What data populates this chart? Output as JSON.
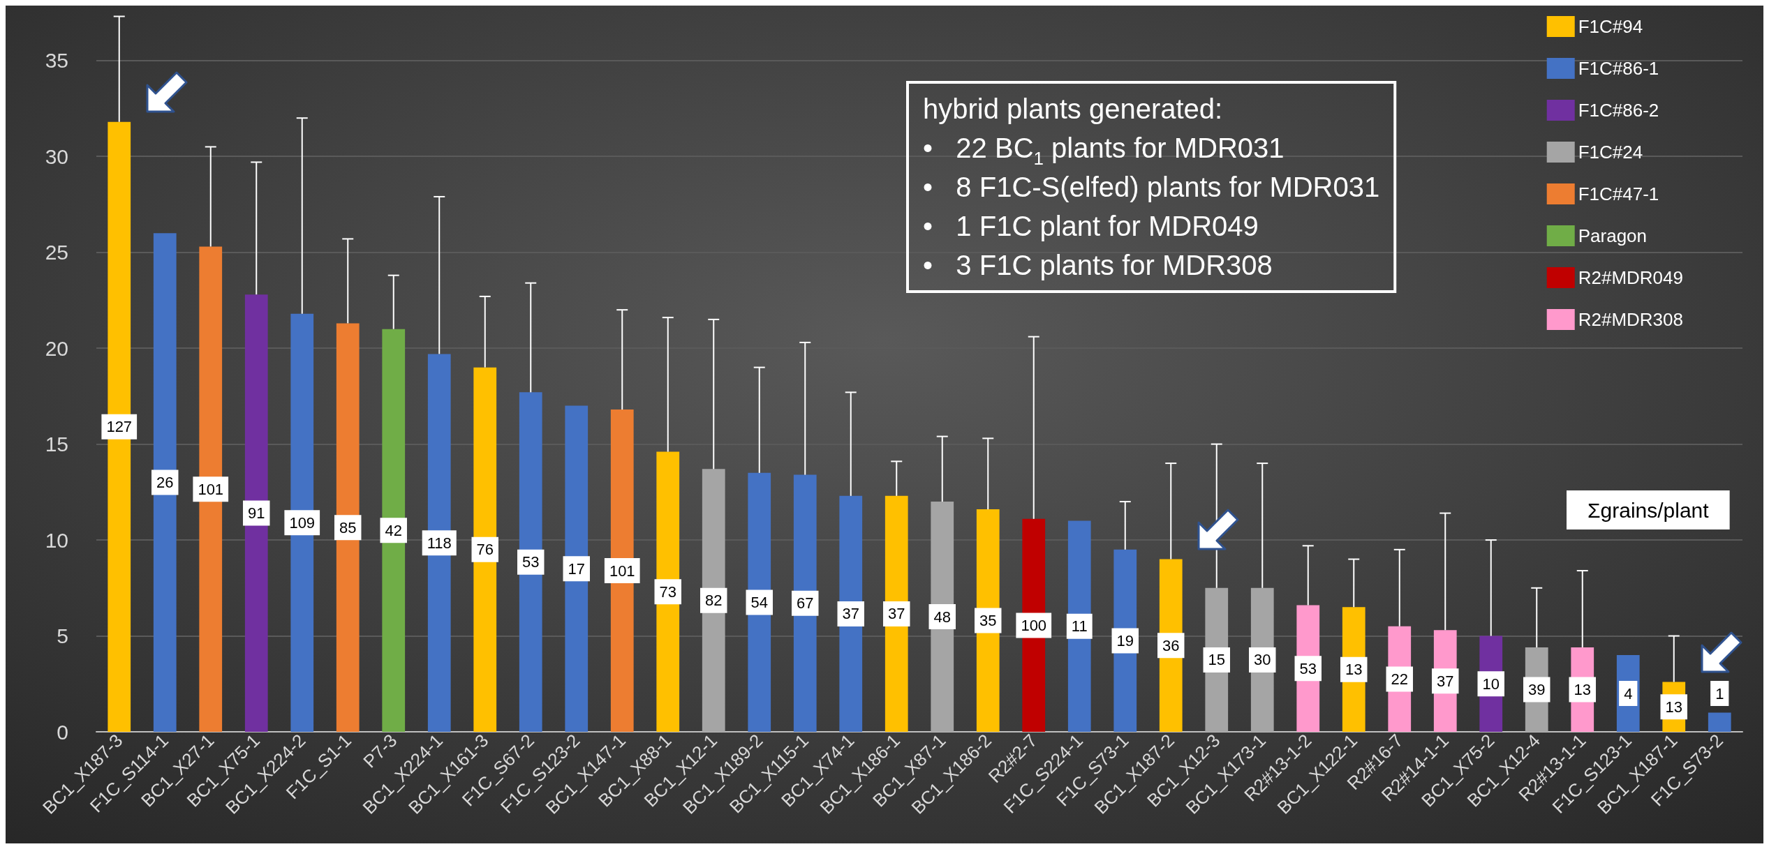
{
  "chart_data": {
    "type": "bar",
    "categories": [
      "BC1_X187-3",
      "F1C_S114-1",
      "BC1_X27-1",
      "BC1_X75-1",
      "BC1_X224-2",
      "F1C_S1-1",
      "P7-3",
      "BC1_X224-1",
      "BC1_X161-3",
      "F1C_S67-2",
      "F1C_S123-2",
      "BC1_X147-1",
      "BC1_X88-1",
      "BC1_X12-1",
      "BC1_X189-2",
      "BC1_X115-1",
      "BC1_X74-1",
      "BC1_X186-1",
      "BC1_X87-1",
      "BC1_X186-2",
      "R2#2-7",
      "F1C_S224-1",
      "F1C_S73-1",
      "BC1_X187-2",
      "BC1_X12-3",
      "BC1_X173-1",
      "R2#13-1-2",
      "BC1_X122-1",
      "R2#16-7",
      "R2#14-1-1",
      "BC1_X75-2",
      "BC1_X12-4",
      "R2#13-1-1",
      "F1C_S123-1",
      "BC1_X187-1",
      "F1C_S73-2"
    ],
    "series": [
      {
        "name": "F1C#94",
        "color": "#ffc000",
        "values": [
          31.8,
          null,
          null,
          null,
          null,
          null,
          null,
          null,
          19.0,
          null,
          null,
          null,
          14.6,
          null,
          null,
          null,
          null,
          12.3,
          null,
          11.6,
          null,
          null,
          null,
          9.0,
          null,
          null,
          null,
          6.5,
          null,
          null,
          null,
          null,
          null,
          null,
          2.6,
          null
        ],
        "errors": [
          [
            31.8,
            37.3
          ],
          null,
          null,
          null,
          null,
          null,
          null,
          null,
          [
            19.0,
            22.7
          ],
          null,
          null,
          null,
          [
            14.6,
            21.6
          ],
          null,
          null,
          null,
          null,
          [
            12.3,
            14.1
          ],
          null,
          [
            11.6,
            15.3
          ],
          null,
          null,
          null,
          [
            9.0,
            14.0
          ],
          null,
          null,
          null,
          [
            6.5,
            9.0
          ],
          null,
          null,
          null,
          null,
          null,
          null,
          [
            2.6,
            5.0
          ],
          null
        ]
      },
      {
        "name": "F1C#86-1",
        "color": "#4472c4",
        "values": [
          null,
          26.0,
          null,
          null,
          21.8,
          null,
          null,
          19.7,
          null,
          17.7,
          17.0,
          null,
          null,
          null,
          13.5,
          13.4,
          12.3,
          null,
          null,
          null,
          null,
          11.0,
          9.5,
          null,
          null,
          null,
          null,
          null,
          null,
          null,
          null,
          null,
          null,
          4.0,
          null,
          1.0
        ],
        "errors": [
          null,
          null,
          null,
          null,
          [
            21.8,
            32.0
          ],
          null,
          null,
          [
            19.7,
            27.9
          ],
          null,
          [
            17.7,
            23.4
          ],
          null,
          null,
          null,
          null,
          [
            13.5,
            19.0
          ],
          [
            13.4,
            20.3
          ],
          [
            12.3,
            17.7
          ],
          null,
          null,
          null,
          null,
          null,
          [
            9.5,
            12.0
          ],
          null,
          null,
          null,
          null,
          null,
          null,
          null,
          null,
          null,
          null,
          null,
          null,
          null
        ]
      },
      {
        "name": "F1C#86-2",
        "color": "#7030a0",
        "values": [
          null,
          null,
          null,
          22.8,
          null,
          null,
          null,
          null,
          null,
          null,
          null,
          null,
          null,
          null,
          null,
          null,
          null,
          null,
          null,
          null,
          null,
          null,
          null,
          null,
          null,
          null,
          null,
          null,
          null,
          null,
          5.0,
          null,
          null,
          null,
          null,
          null
        ],
        "errors": [
          null,
          null,
          null,
          [
            22.8,
            29.7
          ],
          null,
          null,
          null,
          null,
          null,
          null,
          null,
          null,
          null,
          null,
          null,
          null,
          null,
          null,
          null,
          null,
          null,
          null,
          null,
          null,
          null,
          null,
          null,
          null,
          null,
          null,
          [
            5.0,
            10.0
          ],
          null,
          null,
          null,
          null,
          null
        ]
      },
      {
        "name": "F1C#24",
        "color": "#a5a5a5",
        "values": [
          null,
          null,
          null,
          null,
          null,
          null,
          null,
          null,
          null,
          null,
          null,
          null,
          null,
          13.7,
          null,
          null,
          null,
          null,
          12.0,
          null,
          null,
          null,
          null,
          null,
          7.5,
          7.5,
          null,
          null,
          null,
          null,
          null,
          4.4,
          null,
          null,
          null,
          null
        ],
        "errors": [
          null,
          null,
          null,
          null,
          null,
          null,
          null,
          null,
          null,
          null,
          null,
          null,
          null,
          [
            13.7,
            21.5
          ],
          null,
          null,
          null,
          null,
          [
            12.0,
            15.4
          ],
          null,
          null,
          null,
          null,
          null,
          [
            7.5,
            15.0
          ],
          [
            7.5,
            14.0
          ],
          null,
          null,
          null,
          null,
          null,
          [
            4.4,
            7.5
          ],
          null,
          null,
          null,
          null
        ]
      },
      {
        "name": "F1C#47-1",
        "color": "#ed7d31",
        "values": [
          null,
          null,
          25.3,
          null,
          null,
          21.3,
          null,
          null,
          null,
          null,
          null,
          16.8,
          null,
          null,
          null,
          null,
          null,
          null,
          null,
          null,
          null,
          null,
          null,
          null,
          null,
          null,
          null,
          null,
          null,
          null,
          null,
          null,
          null,
          null,
          null,
          null
        ],
        "errors": [
          null,
          null,
          [
            25.3,
            30.5
          ],
          null,
          null,
          [
            21.3,
            25.7
          ],
          null,
          null,
          null,
          null,
          null,
          [
            16.8,
            22.0
          ],
          null,
          null,
          null,
          null,
          null,
          null,
          null,
          null,
          null,
          null,
          null,
          null,
          null,
          null,
          null,
          null,
          null,
          null,
          null,
          null,
          null,
          null,
          null,
          null
        ]
      },
      {
        "name": "Paragon",
        "color": "#70ad47",
        "values": [
          null,
          null,
          null,
          null,
          null,
          null,
          21.0,
          null,
          null,
          null,
          null,
          null,
          null,
          null,
          null,
          null,
          null,
          null,
          null,
          null,
          null,
          null,
          null,
          null,
          null,
          null,
          null,
          null,
          null,
          null,
          null,
          null,
          null,
          null,
          null,
          null
        ],
        "errors": [
          null,
          null,
          null,
          null,
          null,
          null,
          [
            21.0,
            23.8
          ],
          null,
          null,
          null,
          null,
          null,
          null,
          null,
          null,
          null,
          null,
          null,
          null,
          null,
          null,
          null,
          null,
          null,
          null,
          null,
          null,
          null,
          null,
          null,
          null,
          null,
          null,
          null,
          null,
          null
        ]
      },
      {
        "name": "R2#MDR049",
        "color": "#c00000",
        "values": [
          null,
          null,
          null,
          null,
          null,
          null,
          null,
          null,
          null,
          null,
          null,
          null,
          null,
          null,
          null,
          null,
          null,
          null,
          null,
          null,
          11.1,
          null,
          null,
          null,
          null,
          null,
          null,
          null,
          null,
          null,
          null,
          null,
          null,
          null,
          null,
          null
        ],
        "errors": [
          null,
          null,
          null,
          null,
          null,
          null,
          null,
          null,
          null,
          null,
          null,
          null,
          null,
          null,
          null,
          null,
          null,
          null,
          null,
          null,
          [
            11.1,
            20.6
          ],
          null,
          null,
          null,
          null,
          null,
          null,
          null,
          null,
          null,
          null,
          null,
          null,
          null,
          null,
          null
        ]
      },
      {
        "name": "R2#MDR308",
        "color": "#ff99cc",
        "values": [
          null,
          null,
          null,
          null,
          null,
          null,
          null,
          null,
          null,
          null,
          null,
          null,
          null,
          null,
          null,
          null,
          null,
          null,
          null,
          null,
          null,
          null,
          null,
          null,
          null,
          null,
          6.6,
          null,
          5.5,
          5.3,
          null,
          null,
          4.4,
          null,
          null,
          null
        ],
        "errors": [
          null,
          null,
          null,
          null,
          null,
          null,
          null,
          null,
          null,
          null,
          null,
          null,
          null,
          null,
          null,
          null,
          null,
          null,
          null,
          null,
          null,
          null,
          null,
          null,
          null,
          null,
          [
            6.6,
            9.7
          ],
          null,
          [
            5.5,
            9.5
          ],
          [
            5.3,
            11.4
          ],
          null,
          null,
          [
            4.4,
            8.4
          ],
          null,
          null,
          null
        ]
      }
    ],
    "ylim": [
      0,
      37.5
    ],
    "yticks": [
      0,
      5,
      10,
      15,
      20,
      25,
      30,
      35
    ],
    "grid": "y",
    "legend": "top right",
    "annotations": [
      "hybrid plants generated:\n•   22 BC$_{1}$ plants for MDR031\n•   8 F1C-S(elfed) plants for MDR031\n•   1 F1C plant for MDR049\n•   3 F1C plants for MDR308",
      "Σgrains/plant",
      "127",
      "26",
      "101",
      "91",
      "109",
      "85",
      "42",
      "118",
      "76",
      "53",
      "17",
      "101",
      "73",
      "82",
      "54",
      "67",
      "37",
      "37",
      "48",
      "35",
      "100",
      "11",
      "19",
      "36",
      "15",
      "30",
      "53",
      "13",
      "22",
      "37",
      "10",
      "39",
      "13",
      "4",
      "13",
      "1"
    ]
  }
}
